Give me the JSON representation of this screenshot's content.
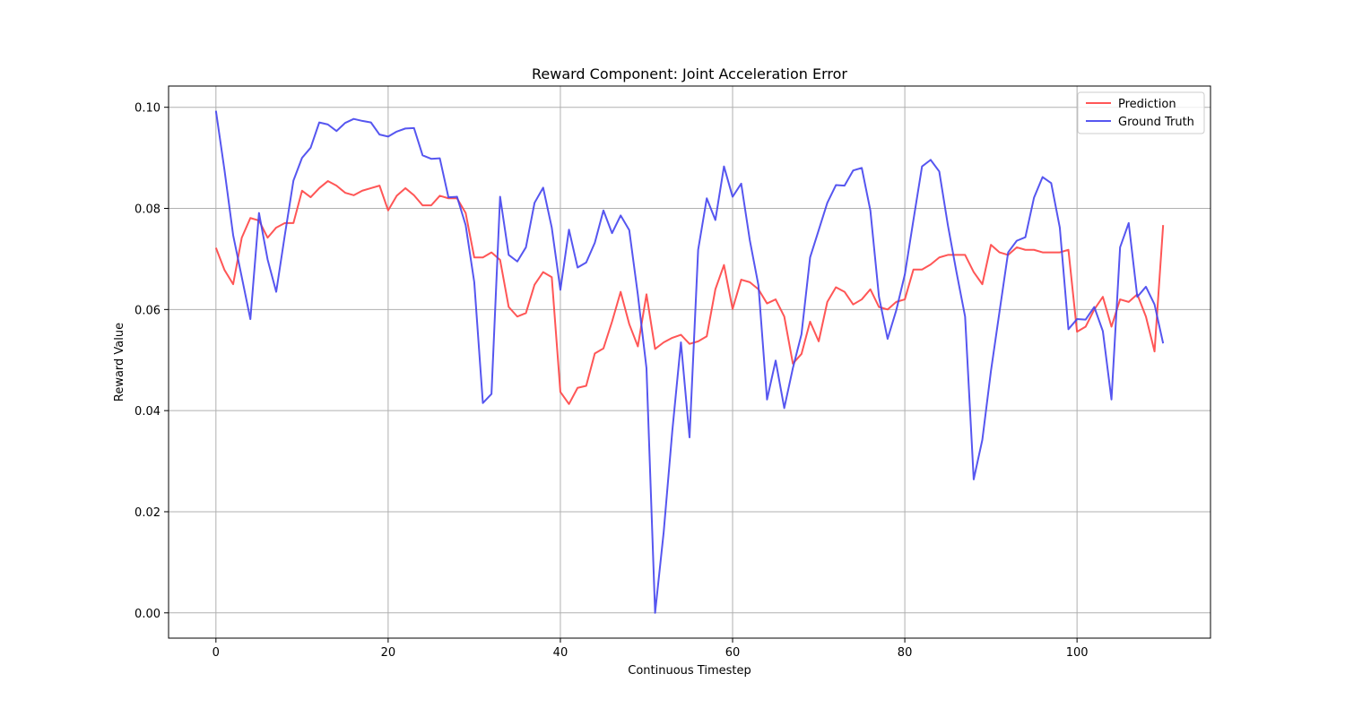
{
  "chart_data": {
    "type": "line",
    "title": "Reward Component: Joint Acceleration Error",
    "xlabel": "Continuous Timestep",
    "ylabel": "Reward Value",
    "xlim": [
      -5.5,
      115.5
    ],
    "ylim": [
      -0.005,
      0.1042
    ],
    "xticks": [
      0,
      20,
      40,
      60,
      80,
      100
    ],
    "yticks": [
      0.0,
      0.02,
      0.04,
      0.06,
      0.08,
      0.1
    ],
    "ytick_labels": [
      "0.00",
      "0.02",
      "0.04",
      "0.06",
      "0.08",
      "0.10"
    ],
    "grid": true,
    "legend_position": "top-right",
    "x": [
      0,
      1,
      2,
      3,
      4,
      5,
      6,
      7,
      8,
      9,
      10,
      11,
      12,
      13,
      14,
      15,
      16,
      17,
      18,
      19,
      20,
      21,
      22,
      23,
      24,
      25,
      26,
      27,
      28,
      29,
      30,
      31,
      32,
      33,
      34,
      35,
      36,
      37,
      38,
      39,
      40,
      41,
      42,
      43,
      44,
      45,
      46,
      47,
      48,
      49,
      50,
      51,
      52,
      53,
      54,
      55,
      56,
      57,
      58,
      59,
      60,
      61,
      62,
      63,
      64,
      65,
      66,
      67,
      68,
      69,
      70,
      71,
      72,
      73,
      74,
      75,
      76,
      77,
      78,
      79,
      80,
      81,
      82,
      83,
      84,
      85,
      86,
      87,
      88,
      89,
      90,
      91,
      92,
      93,
      94,
      95,
      96,
      97,
      98,
      99,
      100,
      101,
      102,
      103,
      104,
      105,
      106,
      107,
      108,
      109,
      110
    ],
    "series": [
      {
        "name": "Prediction",
        "color": "#ff4444",
        "values": [
          0.0722,
          0.0678,
          0.065,
          0.0742,
          0.0781,
          0.0776,
          0.0742,
          0.0762,
          0.0771,
          0.0771,
          0.0835,
          0.0822,
          0.084,
          0.0854,
          0.0845,
          0.0831,
          0.0826,
          0.0835,
          0.084,
          0.0845,
          0.0796,
          0.0825,
          0.084,
          0.0826,
          0.0806,
          0.0806,
          0.0825,
          0.082,
          0.082,
          0.0791,
          0.0703,
          0.0703,
          0.0713,
          0.0698,
          0.0605,
          0.0586,
          0.0593,
          0.0649,
          0.0674,
          0.0664,
          0.0437,
          0.0413,
          0.0445,
          0.0449,
          0.0513,
          0.0523,
          0.0576,
          0.0635,
          0.0571,
          0.0527,
          0.063,
          0.0522,
          0.0535,
          0.0544,
          0.055,
          0.0532,
          0.0537,
          0.0547,
          0.064,
          0.0688,
          0.0601,
          0.0659,
          0.0654,
          0.064,
          0.0612,
          0.062,
          0.0586,
          0.0493,
          0.0512,
          0.0576,
          0.0537,
          0.0615,
          0.0644,
          0.0635,
          0.061,
          0.062,
          0.064,
          0.0605,
          0.06,
          0.0615,
          0.062,
          0.0679,
          0.0679,
          0.0689,
          0.0703,
          0.0708,
          0.0708,
          0.0708,
          0.0674,
          0.065,
          0.0728,
          0.0713,
          0.0708,
          0.0723,
          0.0718,
          0.0718,
          0.0713,
          0.0713,
          0.0713,
          0.0718,
          0.0556,
          0.0566,
          0.06,
          0.0625,
          0.0566,
          0.062,
          0.0615,
          0.063,
          0.0586,
          0.0517,
          0.0767
        ]
      },
      {
        "name": "Ground Truth",
        "color": "#4444ee",
        "values": [
          0.0993,
          0.0875,
          0.0747,
          0.0664,
          0.0581,
          0.0791,
          0.0699,
          0.0635,
          0.0747,
          0.0855,
          0.09,
          0.092,
          0.097,
          0.0966,
          0.0953,
          0.0969,
          0.0977,
          0.0973,
          0.097,
          0.0946,
          0.0942,
          0.0952,
          0.0958,
          0.0959,
          0.0905,
          0.0898,
          0.0899,
          0.0822,
          0.0823,
          0.0767,
          0.0654,
          0.0415,
          0.0433,
          0.0823,
          0.0708,
          0.0695,
          0.0723,
          0.0811,
          0.0841,
          0.0762,
          0.0639,
          0.0758,
          0.0683,
          0.0693,
          0.0732,
          0.0796,
          0.0751,
          0.0786,
          0.0757,
          0.0629,
          0.0484,
          0.0,
          0.016,
          0.036,
          0.0535,
          0.0347,
          0.0718,
          0.082,
          0.0777,
          0.0883,
          0.0823,
          0.0849,
          0.0737,
          0.0648,
          0.0422,
          0.0499,
          0.0405,
          0.0484,
          0.0551,
          0.0703,
          0.0757,
          0.0811,
          0.0846,
          0.0845,
          0.0875,
          0.088,
          0.0796,
          0.0625,
          0.0542,
          0.0598,
          0.0669,
          0.0777,
          0.0883,
          0.0896,
          0.0873,
          0.0767,
          0.0674,
          0.0586,
          0.0264,
          0.0342,
          0.0478,
          0.0596,
          0.0713,
          0.0736,
          0.0743,
          0.0821,
          0.0862,
          0.085,
          0.0762,
          0.0561,
          0.0581,
          0.058,
          0.0605,
          0.0557,
          0.0422,
          0.0723,
          0.0771,
          0.0625,
          0.0645,
          0.061,
          0.0533
        ]
      }
    ]
  }
}
